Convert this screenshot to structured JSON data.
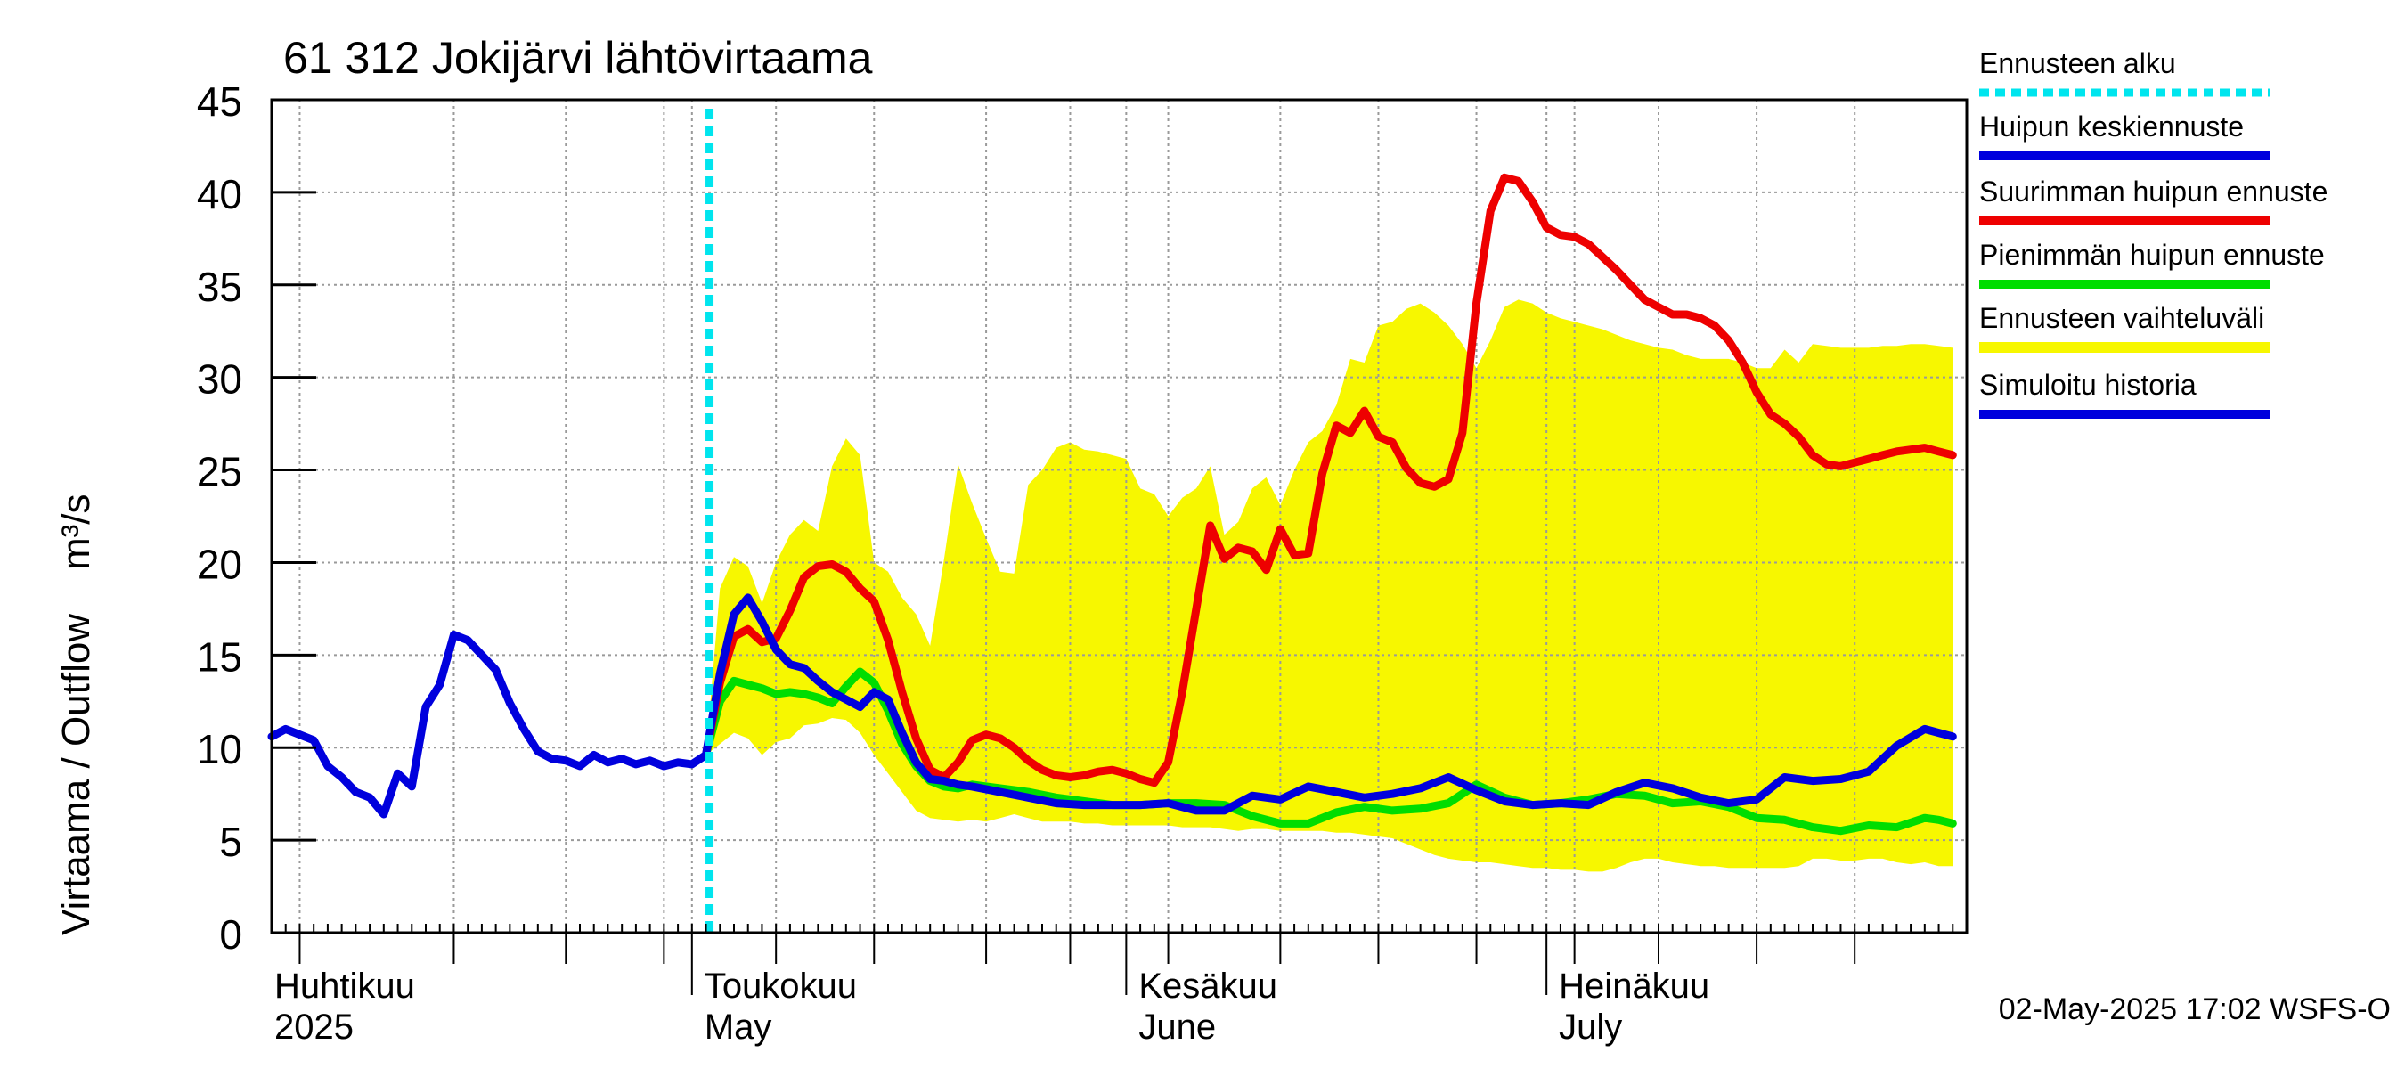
{
  "chart_data": {
    "type": "line",
    "title": "61 312 Jokijärvi lähtövirtaama",
    "ylabel": "Virtaama / Outflow    m³/s",
    "ylim": [
      0,
      45
    ],
    "yticks": [
      0,
      5,
      10,
      15,
      20,
      25,
      30,
      35,
      40,
      45
    ],
    "x_start": "2025-04-01",
    "x_end": "2025-07-31",
    "forecast_start_day": 31,
    "month_labels": [
      {
        "fi": "Huhtikuu",
        "en": "2025",
        "day": 0
      },
      {
        "fi": "Toukokuu",
        "en": "May",
        "day": 30
      },
      {
        "fi": "Kesäkuu",
        "en": "June",
        "day": 61
      },
      {
        "fi": "Heinäkuu",
        "en": "July",
        "day": 91
      }
    ],
    "timestamp": "02-May-2025 17:02 WSFS-O",
    "legend": [
      {
        "label": "Ennusteen alku",
        "color": "#00e5ee",
        "style": "dotted"
      },
      {
        "label": "Huipun keskiennuste",
        "color": "#0000dd",
        "style": "solid"
      },
      {
        "label": "Suurimman huipun ennuste",
        "color": "#ee0000",
        "style": "solid"
      },
      {
        "label": "Pienimmän huipun ennuste",
        "color": "#00dd00",
        "style": "solid"
      },
      {
        "label": "Ennusteen vaihteluväli",
        "color": "#f7f700",
        "style": "band"
      },
      {
        "label": "Simuloitu historia",
        "color": "#0000dd",
        "style": "solid"
      }
    ],
    "colors": {
      "history": "#0000dd",
      "mean": "#0000dd",
      "max": "#ee0000",
      "min": "#00dd00",
      "band": "#f7f700",
      "forecast_start": "#00e5ee"
    },
    "series": [
      {
        "name": "Simuloitu historia",
        "key": "history",
        "x": [
          0,
          1,
          2,
          3,
          4,
          5,
          6,
          7,
          8,
          9,
          10,
          11,
          12,
          13,
          14,
          15,
          16,
          17,
          18,
          19,
          20,
          21,
          22,
          23,
          24,
          25,
          26,
          27,
          28,
          29,
          30,
          31
        ],
        "values": [
          10.6,
          11.0,
          10.7,
          10.4,
          9.0,
          8.4,
          7.6,
          7.3,
          6.4,
          8.6,
          7.9,
          12.2,
          13.4,
          16.1,
          15.8,
          15.0,
          14.2,
          12.4,
          11.0,
          9.8,
          9.4,
          9.3,
          9.0,
          9.6,
          9.2,
          9.4,
          9.1,
          9.3,
          9.0,
          9.2,
          9.1,
          9.6
        ]
      },
      {
        "name": "Huipun keskiennuste",
        "key": "mean",
        "x": [
          31,
          32,
          33,
          34,
          35,
          36,
          37,
          38,
          39,
          40,
          41,
          42,
          43,
          44,
          45,
          46,
          47,
          48,
          49,
          50,
          52,
          54,
          56,
          58,
          60,
          62,
          64,
          66,
          68,
          70,
          72,
          74,
          76,
          78,
          80,
          82,
          84,
          86,
          88,
          90,
          92,
          94,
          96,
          98,
          100,
          102,
          104,
          106,
          108,
          110,
          112,
          114,
          116,
          118,
          119,
          120
        ],
        "values": [
          9.6,
          14.0,
          17.2,
          18.1,
          16.8,
          15.3,
          14.5,
          14.3,
          13.6,
          13.0,
          12.6,
          12.2,
          13.0,
          12.6,
          10.8,
          9.2,
          8.3,
          8.2,
          8.0,
          7.9,
          7.6,
          7.3,
          7.0,
          6.9,
          6.9,
          6.9,
          7.0,
          6.6,
          6.6,
          7.4,
          7.2,
          7.9,
          7.6,
          7.3,
          7.5,
          7.8,
          8.4,
          7.7,
          7.1,
          6.9,
          7.0,
          6.9,
          7.6,
          8.1,
          7.8,
          7.3,
          7.0,
          7.2,
          8.4,
          8.2,
          8.3,
          8.7,
          10.1,
          11.0,
          10.8,
          10.6
        ]
      },
      {
        "name": "Suurimman huipun ennuste",
        "key": "max",
        "x": [
          31,
          32,
          33,
          34,
          35,
          36,
          37,
          38,
          39,
          40,
          41,
          42,
          43,
          44,
          45,
          46,
          47,
          48,
          49,
          50,
          51,
          52,
          53,
          54,
          55,
          56,
          57,
          58,
          59,
          60,
          61,
          62,
          63,
          64,
          65,
          66,
          67,
          68,
          69,
          70,
          71,
          72,
          73,
          74,
          75,
          76,
          77,
          78,
          79,
          80,
          81,
          82,
          83,
          84,
          85,
          86,
          87,
          88,
          89,
          90,
          91,
          92,
          93,
          94,
          95,
          96,
          97,
          98,
          99,
          100,
          101,
          102,
          103,
          104,
          105,
          106,
          107,
          108,
          109,
          110,
          111,
          112,
          113,
          114,
          115,
          116,
          117,
          118,
          119,
          120
        ],
        "values": [
          9.6,
          13.5,
          16.0,
          16.4,
          15.7,
          15.9,
          17.4,
          19.2,
          19.8,
          19.9,
          19.5,
          18.6,
          17.9,
          15.8,
          13.0,
          10.5,
          8.8,
          8.4,
          9.2,
          10.4,
          10.7,
          10.5,
          10.0,
          9.3,
          8.8,
          8.5,
          8.4,
          8.5,
          8.7,
          8.8,
          8.6,
          8.3,
          8.1,
          9.2,
          13.0,
          17.5,
          22.0,
          20.2,
          20.8,
          20.6,
          19.6,
          21.8,
          20.4,
          20.5,
          24.8,
          27.4,
          27.0,
          28.2,
          26.8,
          26.5,
          25.1,
          24.3,
          24.1,
          24.5,
          27.0,
          34.0,
          39.0,
          40.8,
          40.6,
          39.5,
          38.1,
          37.7,
          37.6,
          37.2,
          36.5,
          35.8,
          35.0,
          34.2,
          33.8,
          33.4,
          33.4,
          33.2,
          32.8,
          32.0,
          30.8,
          29.2,
          28.0,
          27.5,
          26.8,
          25.8,
          25.3,
          25.2,
          25.4,
          25.6,
          25.8,
          26.0,
          26.1,
          26.2,
          26.0,
          25.8
        ]
      },
      {
        "name": "Pienimmän huipun ennuste",
        "key": "min",
        "x": [
          31,
          32,
          33,
          34,
          35,
          36,
          37,
          38,
          39,
          40,
          41,
          42,
          43,
          44,
          45,
          46,
          47,
          48,
          49,
          50,
          52,
          54,
          56,
          58,
          60,
          62,
          64,
          66,
          68,
          70,
          72,
          74,
          76,
          78,
          80,
          82,
          84,
          86,
          88,
          90,
          92,
          94,
          96,
          98,
          100,
          102,
          104,
          106,
          108,
          110,
          112,
          114,
          116,
          118,
          119,
          120
        ],
        "values": [
          9.6,
          12.5,
          13.6,
          13.4,
          13.2,
          12.9,
          13.0,
          12.9,
          12.7,
          12.4,
          13.3,
          14.1,
          13.5,
          12.0,
          10.2,
          9.0,
          8.2,
          7.9,
          7.8,
          8.0,
          7.8,
          7.6,
          7.3,
          7.1,
          6.9,
          6.9,
          7.0,
          7.0,
          6.9,
          6.3,
          5.9,
          5.9,
          6.5,
          6.8,
          6.6,
          6.7,
          7.0,
          8.0,
          7.3,
          6.9,
          7.0,
          7.2,
          7.5,
          7.4,
          7.0,
          7.1,
          6.8,
          6.2,
          6.1,
          5.7,
          5.5,
          5.8,
          5.7,
          6.2,
          6.1,
          5.9
        ]
      },
      {
        "name": "Ennusteen vaihteluväli",
        "key": "band",
        "x": [
          31,
          32,
          33,
          34,
          35,
          36,
          37,
          38,
          39,
          40,
          41,
          42,
          43,
          44,
          45,
          46,
          47,
          48,
          49,
          50,
          51,
          52,
          53,
          54,
          55,
          56,
          57,
          58,
          59,
          60,
          61,
          62,
          63,
          64,
          65,
          66,
          67,
          68,
          69,
          70,
          71,
          72,
          73,
          74,
          75,
          76,
          77,
          78,
          79,
          80,
          81,
          82,
          83,
          84,
          85,
          86,
          87,
          88,
          89,
          90,
          91,
          92,
          93,
          94,
          95,
          96,
          97,
          98,
          99,
          100,
          101,
          102,
          103,
          104,
          105,
          106,
          107,
          108,
          109,
          110,
          111,
          112,
          113,
          114,
          115,
          116,
          117,
          118,
          119,
          120
        ],
        "upper": [
          9.6,
          18.6,
          20.3,
          19.8,
          17.8,
          20.0,
          21.5,
          22.3,
          21.7,
          25.2,
          26.7,
          25.8,
          20.0,
          19.5,
          18.1,
          17.2,
          15.5,
          20.2,
          25.3,
          23.2,
          21.3,
          19.5,
          19.4,
          24.2,
          25.0,
          26.2,
          26.5,
          26.1,
          26.0,
          25.8,
          25.6,
          24.0,
          23.7,
          22.5,
          23.5,
          24.0,
          25.2,
          21.5,
          22.2,
          24.0,
          24.6,
          23.1,
          25.0,
          26.5,
          27.1,
          28.5,
          31.0,
          30.8,
          32.8,
          33.0,
          33.7,
          34.0,
          33.5,
          32.8,
          31.8,
          30.5,
          32.0,
          33.8,
          34.2,
          34.0,
          33.5,
          33.2,
          33.0,
          32.8,
          32.6,
          32.3,
          32.0,
          31.8,
          31.6,
          31.5,
          31.2,
          31.0,
          31.0,
          31.0,
          30.8,
          30.5,
          30.5,
          31.5,
          30.8,
          31.8,
          31.7,
          31.6,
          31.6,
          31.6,
          31.7,
          31.7,
          31.8,
          31.8,
          31.7,
          31.6
        ],
        "lower": [
          9.6,
          10.2,
          10.8,
          10.5,
          9.6,
          10.3,
          10.5,
          11.2,
          11.3,
          11.6,
          11.5,
          10.8,
          9.6,
          8.6,
          7.6,
          6.6,
          6.2,
          6.1,
          6.0,
          6.1,
          6.0,
          6.2,
          6.4,
          6.2,
          6.0,
          6.0,
          6.0,
          5.9,
          5.9,
          5.8,
          5.8,
          5.8,
          5.8,
          5.8,
          5.7,
          5.7,
          5.7,
          5.6,
          5.5,
          5.6,
          5.6,
          5.5,
          5.5,
          5.5,
          5.5,
          5.4,
          5.4,
          5.3,
          5.2,
          5.1,
          4.8,
          4.5,
          4.2,
          4.0,
          3.9,
          3.8,
          3.8,
          3.7,
          3.6,
          3.5,
          3.5,
          3.4,
          3.4,
          3.3,
          3.3,
          3.5,
          3.8,
          4.0,
          4.0,
          3.8,
          3.7,
          3.6,
          3.6,
          3.5,
          3.5,
          3.5,
          3.5,
          3.5,
          3.6,
          4.0,
          4.0,
          3.9,
          3.9,
          4.0,
          4.0,
          3.8,
          3.7,
          3.8,
          3.6,
          3.6
        ]
      }
    ]
  }
}
